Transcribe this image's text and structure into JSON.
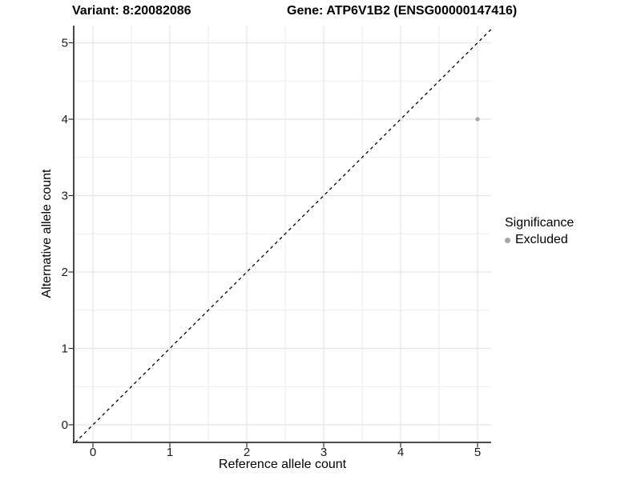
{
  "titles": {
    "variant": "Variant: 8:20082086",
    "gene": "Gene: ATP6V1B2 (ENSG00000147416)"
  },
  "chart_data": {
    "type": "scatter",
    "xlabel": "Reference allele count",
    "ylabel": "Alternative allele count",
    "x_ticks": [
      0,
      1,
      2,
      3,
      4,
      5
    ],
    "y_ticks": [
      0,
      1,
      2,
      3,
      4,
      5
    ],
    "x_minor_ticks": [
      0.5,
      1.5,
      2.5,
      3.5,
      4.5
    ],
    "y_minor_ticks": [
      0.5,
      1.5,
      2.5,
      3.5,
      4.5
    ],
    "xlim": [
      -0.25,
      5.18
    ],
    "ylim": [
      -0.23,
      5.23
    ],
    "grid": "major+minor",
    "points": [
      {
        "x": 5,
        "y": 4,
        "series": "Excluded"
      }
    ],
    "reference_line": {
      "kind": "identity y=x",
      "style": "dashed",
      "color": "#000000"
    },
    "legend": {
      "title": "Significance",
      "position": "right",
      "entries": [
        {
          "label": "Excluded",
          "color": "#A6A6A6"
        }
      ]
    },
    "colors": {
      "point": "#A6A6A6",
      "grid_major": "#E4E4E4",
      "grid_minor": "#EFEFEF",
      "axis_line": "#333333",
      "tick_text": "#1A1A1A"
    }
  }
}
